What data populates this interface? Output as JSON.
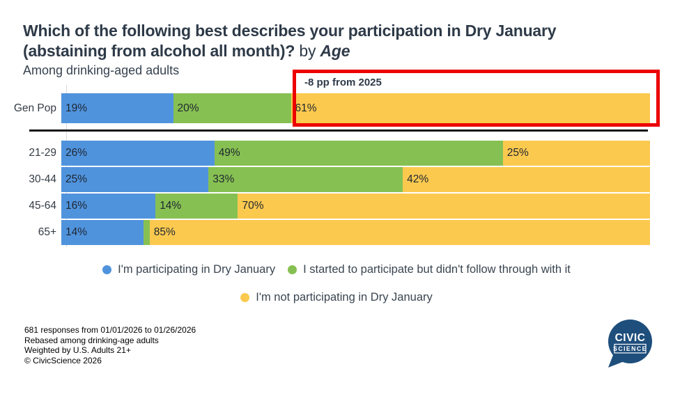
{
  "title": {
    "line1": "Which of the following best describes your participation in Dry January",
    "line2": "(abstaining from alcohol all month)?",
    "by": "by",
    "dimension": "Age"
  },
  "subtitle": "Among drinking-aged adults",
  "annotation": {
    "text": "-8 pp from 2025",
    "box_color": "#ec0000",
    "applies_to": "Gen Pop 'I'm not participating in Dry January' segment"
  },
  "chart_data": {
    "type": "bar",
    "variant": "horizontal-stacked",
    "unit": "%",
    "xlim": [
      0,
      100
    ],
    "categories": [
      "Gen Pop",
      "21-29",
      "30-44",
      "45-64",
      "65+"
    ],
    "series": [
      {
        "name": "I'm participating in Dry January",
        "color": "#5093dd",
        "values": [
          19,
          26,
          25,
          16,
          14
        ]
      },
      {
        "name": "I started to participate but didn't follow through with it",
        "color": "#87c052",
        "values": [
          20,
          49,
          33,
          14,
          1
        ]
      },
      {
        "name": "I'm not participating in Dry January",
        "color": "#fcc94f",
        "values": [
          61,
          25,
          42,
          70,
          85
        ]
      }
    ],
    "label_format": "{value}%",
    "min_value_for_label": 2,
    "legend_position": "bottom",
    "grid": false
  },
  "legend": {
    "items": [
      {
        "label": "I'm participating in Dry January",
        "color": "#5093dd"
      },
      {
        "label": "I started to participate but didn't follow through with it",
        "color": "#87c052"
      },
      {
        "label": "I'm not participating in Dry January",
        "color": "#fcc94f"
      }
    ]
  },
  "footer": {
    "lines": [
      "681 responses from 01/01/2026 to 01/26/2026",
      "Rebased among drinking-age adults",
      "Weighted by U.S. Adults 21+",
      "© CivicScience 2026"
    ]
  },
  "logo": {
    "line1": "CIVIC",
    "line2": "SCIENCE",
    "color": "#1e4e7c"
  }
}
